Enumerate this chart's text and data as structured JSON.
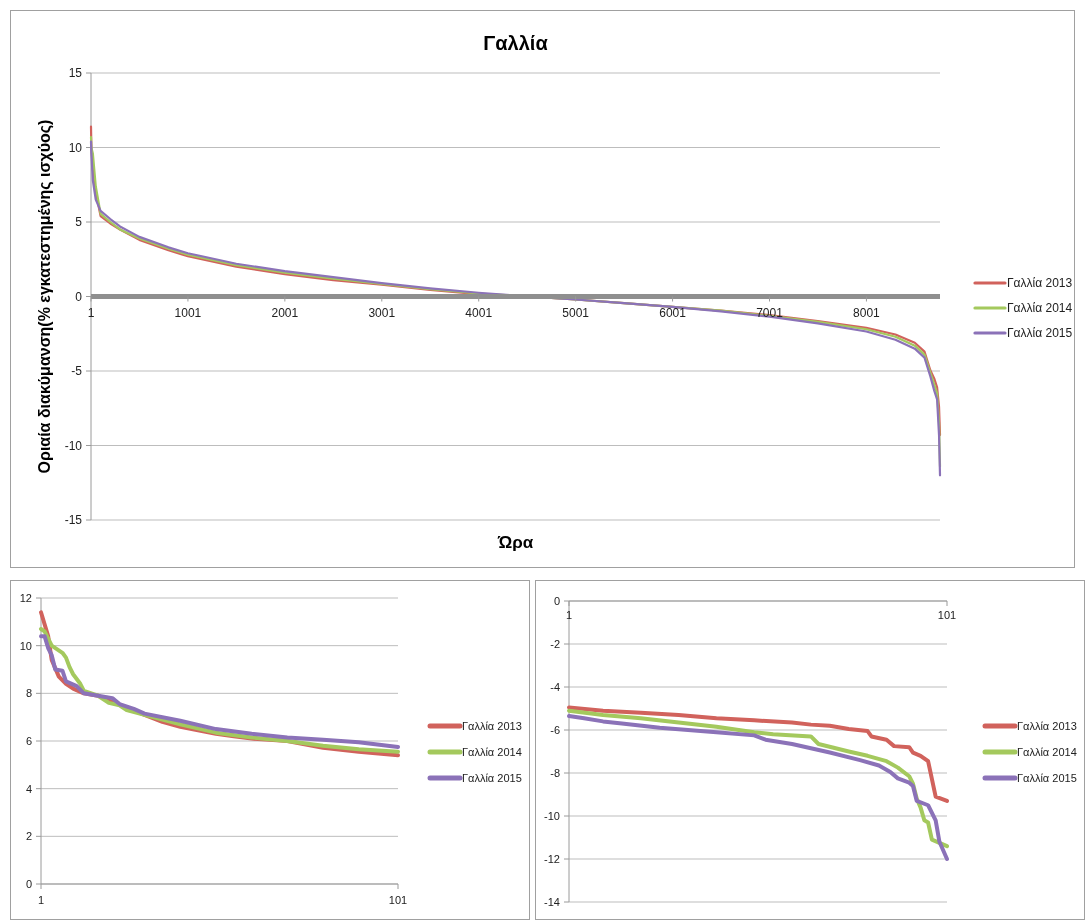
{
  "chart_data": [
    {
      "type": "line",
      "title": "Γαλλία",
      "xlabel": "Ώρα",
      "ylabel": "Οριαία διακύμανση(% εγκατεστημένης ισχύος)",
      "xlim": [
        1,
        8760
      ],
      "xticks": [
        1,
        1001,
        2001,
        3001,
        4001,
        5001,
        6001,
        7001,
        8001
      ],
      "ylim": [
        -15,
        15
      ],
      "yticks": [
        -15,
        -10,
        -5,
        0,
        5,
        10,
        15
      ],
      "grid": "y",
      "legend": "right",
      "series": [
        {
          "name": "Γαλλία 2013",
          "color": "#d1625c",
          "x": [
            1,
            5,
            20,
            50,
            100,
            200,
            300,
            500,
            800,
            1000,
            1500,
            2000,
            2500,
            3000,
            3500,
            4000,
            4500,
            5000,
            5500,
            6000,
            6500,
            7000,
            7500,
            8000,
            8300,
            8500,
            8600,
            8660,
            8700,
            8730,
            8750,
            8760
          ],
          "values": [
            11.4,
            10,
            8.5,
            7,
            5.4,
            4.9,
            4.5,
            3.8,
            3.1,
            2.7,
            2.0,
            1.5,
            1.1,
            0.8,
            0.45,
            0.15,
            0,
            -0.2,
            -0.45,
            -0.7,
            -0.95,
            -1.25,
            -1.65,
            -2.1,
            -2.55,
            -3.1,
            -3.7,
            -4.95,
            -5.5,
            -6.1,
            -7.4,
            -9.3
          ]
        },
        {
          "name": "Γαλλία 2014",
          "color": "#a4c95d",
          "x": [
            1,
            5,
            20,
            50,
            100,
            200,
            300,
            500,
            800,
            1000,
            1500,
            2000,
            2500,
            3000,
            3500,
            4000,
            4500,
            5000,
            5500,
            6000,
            6500,
            7000,
            7500,
            8000,
            8300,
            8500,
            8600,
            8660,
            8700,
            8730,
            8750,
            8760
          ],
          "values": [
            10.7,
            10,
            9.6,
            7.4,
            5.55,
            5.0,
            4.5,
            3.9,
            3.2,
            2.8,
            2.1,
            1.6,
            1.2,
            0.85,
            0.5,
            0.2,
            0,
            -0.2,
            -0.45,
            -0.7,
            -0.95,
            -1.3,
            -1.7,
            -2.2,
            -2.7,
            -3.3,
            -3.9,
            -5.1,
            -5.9,
            -6.5,
            -8.5,
            -11.4
          ]
        },
        {
          "name": "Γαλλία 2015",
          "color": "#8b72b8",
          "x": [
            1,
            5,
            20,
            50,
            100,
            200,
            300,
            500,
            800,
            1000,
            1500,
            2000,
            2500,
            3000,
            3500,
            4000,
            4500,
            5000,
            5500,
            6000,
            6500,
            7000,
            7500,
            8000,
            8300,
            8500,
            8600,
            8660,
            8700,
            8730,
            8750,
            8760
          ],
          "values": [
            10.4,
            9.6,
            7.8,
            6.5,
            5.75,
            5.2,
            4.7,
            4.0,
            3.3,
            2.9,
            2.2,
            1.7,
            1.3,
            0.9,
            0.55,
            0.25,
            0,
            -0.2,
            -0.45,
            -0.7,
            -1.0,
            -1.35,
            -1.8,
            -2.35,
            -2.9,
            -3.5,
            -4.1,
            -5.35,
            -6.3,
            -6.9,
            -9.3,
            -12
          ]
        }
      ]
    },
    {
      "type": "line",
      "xlim": [
        1,
        101
      ],
      "xticks": [
        1,
        101
      ],
      "ylim": [
        0,
        12
      ],
      "yticks": [
        0,
        2,
        4,
        6,
        8,
        10,
        12
      ],
      "grid": "y",
      "legend": "right",
      "series": [
        {
          "name": "Γαλλία 2013",
          "color": "#d1625c",
          "x": [
            1,
            3,
            4,
            6,
            8,
            10,
            13,
            17,
            20,
            25,
            30,
            35,
            40,
            50,
            55,
            60,
            65,
            70,
            80,
            90,
            101
          ],
          "values": [
            11.4,
            10.4,
            9.4,
            8.7,
            8.4,
            8.2,
            8.0,
            7.9,
            7.7,
            7.4,
            7.1,
            6.8,
            6.6,
            6.3,
            6.2,
            6.1,
            6.05,
            6.0,
            5.72,
            5.55,
            5.4
          ]
        },
        {
          "name": "Γαλλία 2014",
          "color": "#a4c95d",
          "x": [
            1,
            2,
            4,
            7,
            8,
            9,
            10,
            12,
            13,
            17,
            20,
            23,
            25,
            30,
            40,
            50,
            60,
            70,
            80,
            90,
            101
          ],
          "values": [
            10.7,
            10.6,
            10.0,
            9.7,
            9.5,
            9.1,
            8.8,
            8.4,
            8.1,
            7.9,
            7.6,
            7.5,
            7.3,
            7.1,
            6.7,
            6.35,
            6.15,
            6.0,
            5.8,
            5.65,
            5.55
          ]
        },
        {
          "name": "Γαλλία 2015",
          "color": "#8b72b8",
          "x": [
            1,
            2,
            3,
            4,
            5,
            7,
            8,
            11,
            13,
            19,
            21,
            23,
            27,
            30,
            40,
            50,
            60,
            70,
            80,
            90,
            101
          ],
          "values": [
            10.4,
            10.4,
            9.9,
            9.6,
            9.0,
            8.95,
            8.5,
            8.3,
            8.0,
            7.85,
            7.8,
            7.55,
            7.35,
            7.15,
            6.85,
            6.5,
            6.3,
            6.15,
            6.05,
            5.95,
            5.75
          ]
        }
      ]
    },
    {
      "type": "line",
      "xlim": [
        1,
        101
      ],
      "xticks": [
        1,
        101
      ],
      "ylim": [
        -14,
        0
      ],
      "yticks": [
        -14,
        -12,
        -10,
        -8,
        -6,
        -4,
        -2,
        0
      ],
      "grid": "y",
      "legend": "right",
      "series": [
        {
          "name": "Γαλλία 2013",
          "color": "#d1625c",
          "x": [
            1,
            10,
            20,
            30,
            40,
            50,
            60,
            65,
            70,
            75,
            80,
            81,
            85,
            87,
            91,
            92,
            94,
            96,
            98,
            101
          ],
          "values": [
            -4.95,
            -5.1,
            -5.2,
            -5.3,
            -5.45,
            -5.55,
            -5.65,
            -5.75,
            -5.8,
            -5.95,
            -6.05,
            -6.3,
            -6.45,
            -6.75,
            -6.8,
            -7.05,
            -7.2,
            -7.45,
            -9.1,
            -9.3
          ]
        },
        {
          "name": "Γαλλία 2014",
          "color": "#a4c95d",
          "x": [
            1,
            10,
            20,
            30,
            40,
            50,
            55,
            65,
            67,
            75,
            80,
            85,
            88,
            91,
            92,
            93,
            94,
            95,
            96,
            97,
            101
          ],
          "values": [
            -5.1,
            -5.3,
            -5.45,
            -5.65,
            -5.85,
            -6.1,
            -6.2,
            -6.3,
            -6.65,
            -7.0,
            -7.2,
            -7.45,
            -7.75,
            -8.15,
            -8.5,
            -9.2,
            -9.6,
            -10.2,
            -10.3,
            -11.1,
            -11.4
          ]
        },
        {
          "name": "Γαλλία 2015",
          "color": "#8b72b8",
          "x": [
            1,
            5,
            10,
            15,
            25,
            40,
            50,
            53,
            60,
            70,
            78,
            83,
            86,
            88,
            91,
            92,
            93,
            96,
            98,
            99,
            101
          ],
          "values": [
            -5.35,
            -5.45,
            -5.6,
            -5.7,
            -5.9,
            -6.1,
            -6.25,
            -6.45,
            -6.65,
            -7.05,
            -7.4,
            -7.65,
            -7.95,
            -8.25,
            -8.45,
            -8.6,
            -9.3,
            -9.5,
            -10.2,
            -11.2,
            -12
          ]
        }
      ]
    }
  ]
}
